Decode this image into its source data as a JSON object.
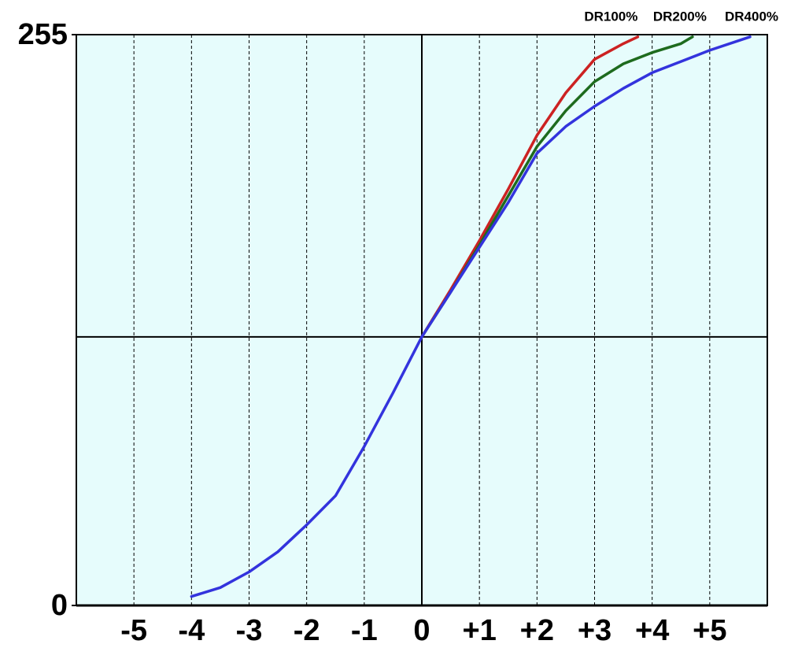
{
  "chart_data": {
    "type": "line",
    "xlim": [
      -6,
      6
    ],
    "ylim": [
      0,
      255
    ],
    "yticks": [
      0,
      255
    ],
    "xticks": [
      -5,
      -4,
      -3,
      -2,
      -1,
      0,
      {
        "value": 1,
        "label": "+1"
      },
      {
        "value": 2,
        "label": "+2"
      },
      {
        "value": 3,
        "label": "+3"
      },
      {
        "value": 4,
        "label": "+4"
      },
      {
        "value": 5,
        "label": "+5"
      }
    ],
    "grid": true,
    "hline": 120,
    "background": "#e6fcfc",
    "series": [
      {
        "name": "DR100%",
        "color": "#cc2222",
        "x": [
          0,
          0.5,
          1,
          1.5,
          2,
          2.5,
          3,
          3.5,
          3.75
        ],
        "values": [
          120,
          141,
          163,
          186,
          210,
          229,
          244,
          251,
          254
        ]
      },
      {
        "name": "DR200%",
        "color": "#1e6b1e",
        "x": [
          0,
          0.5,
          1,
          1.5,
          2,
          2.5,
          3,
          3.5,
          4,
          4.5,
          4.7
        ],
        "values": [
          120,
          140,
          161,
          183,
          205,
          221,
          234,
          242,
          247,
          251,
          254
        ]
      },
      {
        "name": "DR400%",
        "color": "#3333dd",
        "x": [
          -4,
          -3.5,
          -3,
          -2.5,
          -2,
          -1.5,
          -1,
          -0.5,
          0,
          0.5,
          1,
          1.5,
          2,
          2.5,
          3,
          3.5,
          4,
          4.5,
          5,
          5.7
        ],
        "values": [
          4,
          8,
          15,
          24,
          36,
          49,
          71,
          95,
          120,
          140,
          160,
          180,
          202,
          214,
          223,
          231,
          238,
          243,
          248,
          254
        ]
      }
    ]
  }
}
